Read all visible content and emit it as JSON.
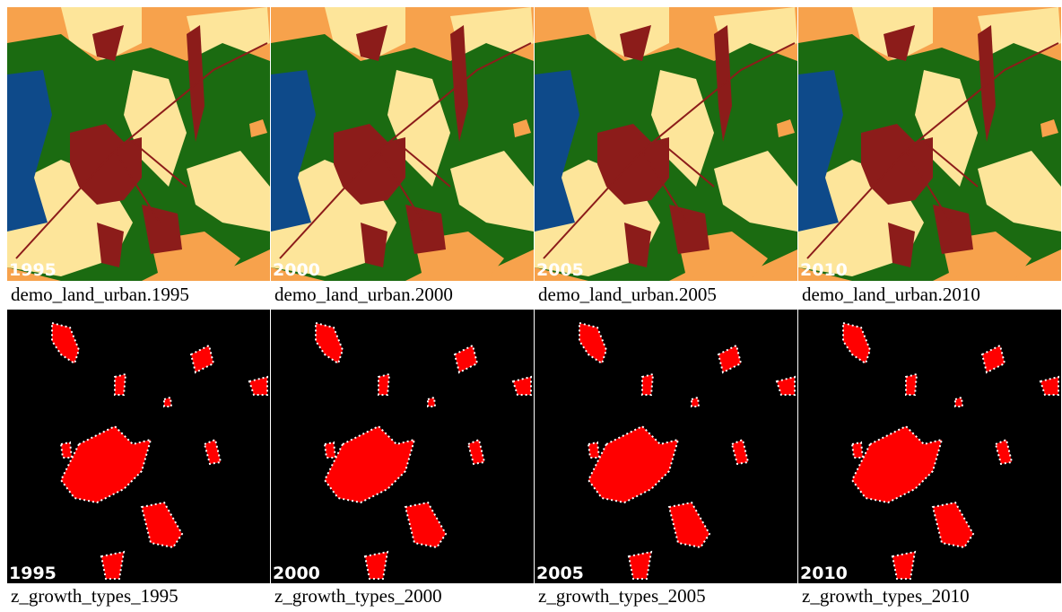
{
  "land_panels": [
    {
      "label": "1995",
      "caption": "demo_land_urban.1995"
    },
    {
      "label": "2000",
      "caption": "demo_land_urban.2000"
    },
    {
      "label": "2005",
      "caption": "demo_land_urban.2005"
    },
    {
      "label": "2010",
      "caption": "demo_land_urban.2010"
    }
  ],
  "growth_panels": [
    {
      "label": "1995",
      "caption": "z_growth_types_1995"
    },
    {
      "label": "2000",
      "caption": "z_growth_types_2000"
    },
    {
      "label": "2005",
      "caption": "z_growth_types_2005"
    },
    {
      "label": "2010",
      "caption": "z_growth_types_2010"
    }
  ]
}
